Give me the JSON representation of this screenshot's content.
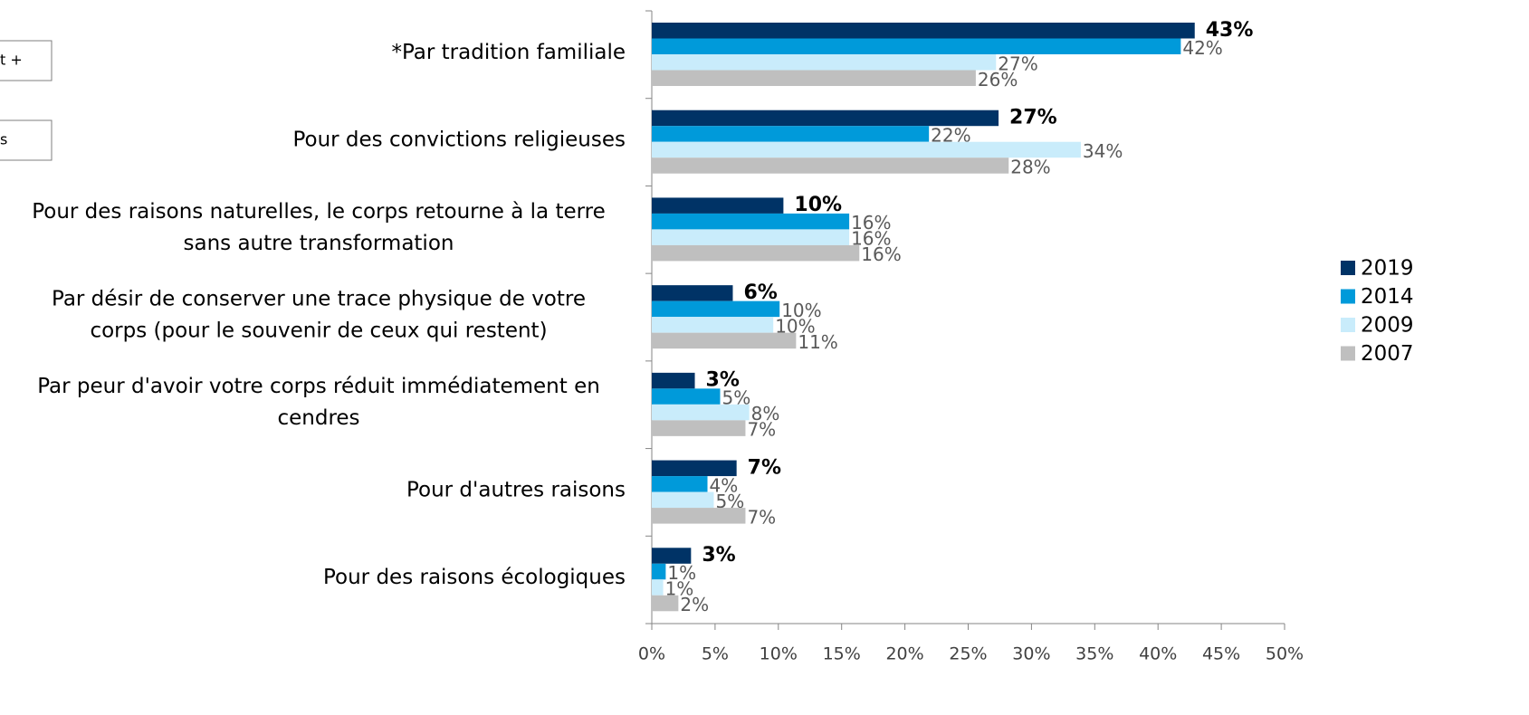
{
  "chart_data": {
    "type": "hbar",
    "annotations": [
      "t +",
      "s"
    ],
    "categories": [
      [
        "*Par tradition familiale"
      ],
      [
        "Pour des convictions religieuses"
      ],
      [
        "Pour des raisons naturelles, le corps retourne à la terre",
        "sans autre transformation"
      ],
      [
        "Par désir de conserver une trace physique de votre",
        "corps (pour le souvenir de ceux qui restent)"
      ],
      [
        "Par peur d'avoir votre corps réduit immédiatement en",
        "cendres"
      ],
      [
        "Pour d'autres raisons"
      ],
      [
        "Pour des raisons écologiques"
      ]
    ],
    "series": [
      {
        "name": "2019",
        "color": "#003366",
        "values": [
          42.9,
          27.4,
          10.4,
          6.4,
          3.4,
          6.7,
          3.1
        ],
        "value_labels": [
          "43%",
          "27%",
          "10%",
          "6%",
          "3%",
          "7%",
          "3%"
        ]
      },
      {
        "name": "2014",
        "color": "#009ada",
        "values": [
          41.8,
          21.9,
          15.6,
          10.1,
          5.4,
          4.4,
          1.1
        ],
        "value_labels": [
          "42%",
          "22%",
          "16%",
          "10%",
          "5%",
          "4%",
          "1%"
        ]
      },
      {
        "name": "2009",
        "color": "#c9ecfb",
        "values": [
          27.2,
          33.9,
          15.6,
          9.6,
          7.7,
          4.9,
          0.9
        ],
        "value_labels": [
          "27%",
          "34%",
          "16%",
          "10%",
          "8%",
          "5%",
          "1%"
        ]
      },
      {
        "name": "2007",
        "color": "#bfbfbf",
        "values": [
          25.6,
          28.2,
          16.4,
          11.4,
          7.4,
          7.4,
          2.1
        ],
        "value_labels": [
          "26%",
          "28%",
          "16%",
          "11%",
          "7%",
          "7%",
          "2%"
        ]
      }
    ],
    "xlim": [
      0,
      50
    ],
    "xticks": [
      {
        "value": 0,
        "label": "0%"
      },
      {
        "value": 5,
        "label": "5%"
      },
      {
        "value": 10,
        "label": "10%"
      },
      {
        "value": 15,
        "label": "15%"
      },
      {
        "value": 20,
        "label": "20%"
      },
      {
        "value": 25,
        "label": "25%"
      },
      {
        "value": 30,
        "label": "30%"
      },
      {
        "value": 35,
        "label": "35%"
      },
      {
        "value": 40,
        "label": "40%"
      },
      {
        "value": 45,
        "label": "45%"
      },
      {
        "value": 50,
        "label": "50%"
      }
    ],
    "legend": "right"
  }
}
